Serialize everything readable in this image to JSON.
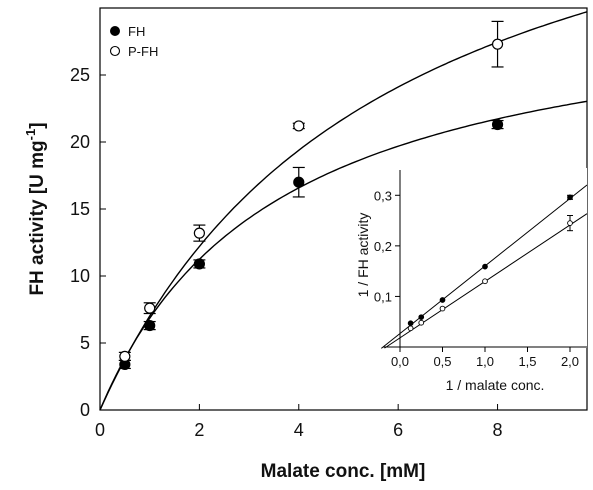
{
  "chart_data": [
    {
      "type": "scatter",
      "title": "",
      "xlabel": "Malate conc. [mM]",
      "ylabel_main": "FH activity [U mg",
      "ylabel_sup": "-1",
      "ylabel_close": "]",
      "xlim": [
        0,
        9.8
      ],
      "ylim": [
        0,
        30
      ],
      "xticks": [
        0,
        2,
        4,
        6,
        8
      ],
      "yticks": [
        0,
        5,
        10,
        15,
        20,
        25
      ],
      "x_tick_labels": [
        "0",
        "2",
        "4",
        "6",
        "8"
      ],
      "y_tick_labels": [
        "0",
        "5",
        "10",
        "15",
        "20",
        "25"
      ],
      "legend_position": "top-left",
      "series": [
        {
          "name": "FH",
          "marker": "filled-circle",
          "points": [
            {
              "x": 0.5,
              "y": 3.4,
              "err": 0.3
            },
            {
              "x": 1,
              "y": 6.3,
              "err": 0.3
            },
            {
              "x": 2,
              "y": 10.9,
              "err": 0.3
            },
            {
              "x": 4,
              "y": 17.0,
              "err": 1.1
            },
            {
              "x": 8,
              "y": 21.3,
              "err": 0.3
            }
          ],
          "fit": {
            "vmax": 31.5,
            "km": 3.6
          }
        },
        {
          "name": "P-FH",
          "marker": "open-circle",
          "points": [
            {
              "x": 0.5,
              "y": 4.0,
              "err": 0.3
            },
            {
              "x": 1,
              "y": 7.6,
              "err": 0.4
            },
            {
              "x": 2,
              "y": 13.2,
              "err": 0.6
            },
            {
              "x": 4,
              "y": 21.2,
              "err": 0.2
            },
            {
              "x": 8,
              "y": 27.3,
              "err": 1.7
            }
          ],
          "fit": {
            "vmax": 47.0,
            "km": 5.7
          }
        }
      ]
    },
    {
      "type": "scatter",
      "title": "",
      "xlabel": "1 / malate conc.",
      "ylabel": "1 / FH activity",
      "xlim": [
        -0.2,
        2.2
      ],
      "ylim": [
        0,
        0.35
      ],
      "xticks": [
        0,
        0.5,
        1,
        1.5,
        2
      ],
      "yticks": [
        0.1,
        0.2,
        0.3
      ],
      "x_tick_labels": [
        "0,0",
        "0,5",
        "1,0",
        "1,5",
        "2,0"
      ],
      "y_tick_labels": [
        "0,1",
        "0,2",
        "0,3"
      ],
      "series": [
        {
          "name": "FH",
          "marker": "filled-circle",
          "points": [
            {
              "x": 0.125,
              "y": 0.047,
              "err": 0
            },
            {
              "x": 0.25,
              "y": 0.059,
              "err": 0
            },
            {
              "x": 0.5,
              "y": 0.093,
              "err": 0
            },
            {
              "x": 1,
              "y": 0.159,
              "err": 0
            },
            {
              "x": 2,
              "y": 0.296,
              "err": 0.004
            }
          ],
          "fit": {
            "slope": 0.1335,
            "intercept": 0.0267
          }
        },
        {
          "name": "P-FH",
          "marker": "open-circle",
          "points": [
            {
              "x": 0.125,
              "y": 0.037,
              "err": 0
            },
            {
              "x": 0.25,
              "y": 0.048,
              "err": 0
            },
            {
              "x": 0.5,
              "y": 0.076,
              "err": 0
            },
            {
              "x": 1,
              "y": 0.13,
              "err": 0
            },
            {
              "x": 2,
              "y": 0.245,
              "err": 0.015
            }
          ],
          "fit": {
            "slope": 0.1116,
            "intercept": 0.0181
          }
        }
      ]
    }
  ]
}
